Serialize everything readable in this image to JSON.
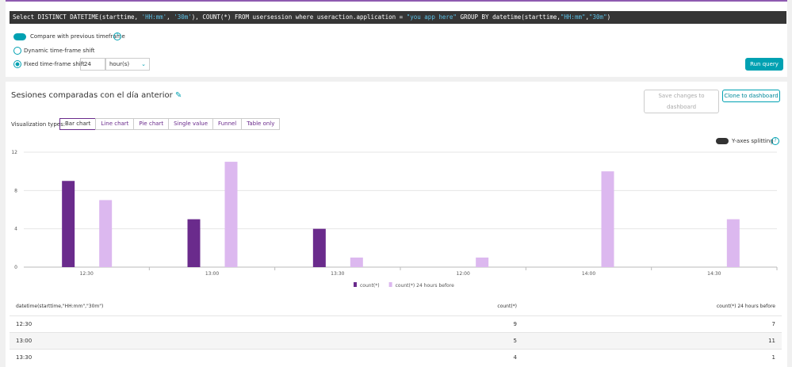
{
  "query": {
    "segments": [
      "Select DISTINCT DATETIME(starttime, ",
      "'HH:mm'",
      ", ",
      "'30m'",
      "), COUNT(*) FROM usersession where useraction.application = ",
      "\"you app here\"",
      " GROUP BY datetime(starttime,",
      "\"HH:mm\"",
      ",",
      "\"30m\"",
      ")"
    ]
  },
  "options": {
    "compare": "Compare with previous timeframe",
    "dynamic": "Dynamic time-frame shift",
    "fixed": "Fixed time-frame shift",
    "shift_value": "24",
    "shift_unit": "hour(s)",
    "run": "Run query"
  },
  "panel": {
    "title": "Sesiones comparadas con el día anterior",
    "save": "Save changes to dashboard",
    "clone": "Clone to dashboard",
    "viz_label": "Visualization types:",
    "viz_types": [
      "Bar chart",
      "Line chart",
      "Pie chart",
      "Single value",
      "Funnel",
      "Table only"
    ],
    "split": "Y-axes splitting"
  },
  "chart_data": {
    "type": "bar",
    "categories": [
      "12:30",
      "13:00",
      "13:30",
      "12:00",
      "14:00",
      "14:30"
    ],
    "series": [
      {
        "name": "count(*)",
        "color": "#6a2b8c",
        "values": [
          9,
          5,
          4,
          null,
          null,
          null
        ]
      },
      {
        "name": "count(*) 24 hours before",
        "color": "#dcb8ef",
        "values": [
          7,
          11,
          1,
          1,
          10,
          5
        ]
      }
    ],
    "ylim": [
      0,
      12
    ],
    "yticks": [
      0,
      4,
      8,
      12
    ],
    "grid": true
  },
  "table": {
    "columns": [
      "datetime(starttime,\"HH:mm\",\"30m\")",
      "count(*)",
      "count(*) 24 hours before"
    ],
    "rows": [
      [
        "12:30",
        "9",
        "7"
      ],
      [
        "13:00",
        "5",
        "11"
      ],
      [
        "13:30",
        "4",
        "1"
      ]
    ]
  }
}
